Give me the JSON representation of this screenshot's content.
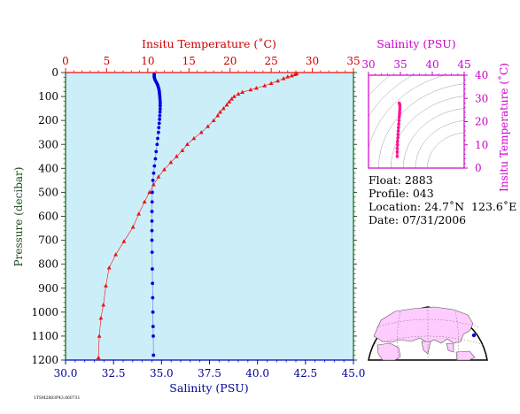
{
  "chart_data": [
    {
      "type": "scatter",
      "name": "profile",
      "top_axis_label": "Insitu Temperature (˚C)",
      "bottom_axis_label": "Salinity (PSU)",
      "ylabel": "Pressure (decibar)",
      "temperature_range": [
        0,
        35
      ],
      "salinity_range": [
        30,
        45
      ],
      "pressure_range": [
        1200,
        0
      ],
      "temperature_ticks": [
        "0",
        "5",
        "10",
        "15",
        "20",
        "25",
        "30",
        "35"
      ],
      "salinity_ticks": [
        "30.0",
        "32.5",
        "35.0",
        "37.5",
        "40.0",
        "42.5",
        "45.0"
      ],
      "pressure_ticks": [
        "0",
        "100",
        "200",
        "300",
        "400",
        "500",
        "600",
        "700",
        "800",
        "900",
        "1000",
        "1100",
        "1200"
      ],
      "background_color": "#cceef8",
      "temperature_color": "#ee1111",
      "salinity_color": "#0000dd",
      "series": [
        {
          "quantity": "temperature",
          "marker": "triangle",
          "points": [
            [
              28.1,
              5
            ],
            [
              27.9,
              8
            ],
            [
              27.5,
              13
            ],
            [
              27.0,
              18
            ],
            [
              26.5,
              25
            ],
            [
              25.8,
              35
            ],
            [
              25.0,
              45
            ],
            [
              24.2,
              55
            ],
            [
              23.2,
              65
            ],
            [
              22.5,
              72
            ],
            [
              21.5,
              82
            ],
            [
              21.0,
              90
            ],
            [
              20.5,
              100
            ],
            [
              20.2,
              110
            ],
            [
              19.9,
              122
            ],
            [
              19.6,
              135
            ],
            [
              19.2,
              150
            ],
            [
              18.8,
              165
            ],
            [
              18.5,
              180
            ],
            [
              18.0,
              200
            ],
            [
              17.3,
              225
            ],
            [
              16.5,
              250
            ],
            [
              15.6,
              275
            ],
            [
              14.8,
              300
            ],
            [
              14.2,
              325
            ],
            [
              13.5,
              350
            ],
            [
              12.8,
              375
            ],
            [
              12.0,
              405
            ],
            [
              11.3,
              435
            ],
            [
              10.7,
              468
            ],
            [
              10.2,
              500
            ],
            [
              9.6,
              540
            ],
            [
              8.9,
              590
            ],
            [
              8.2,
              645
            ],
            [
              7.1,
              705
            ],
            [
              6.1,
              760
            ],
            [
              5.3,
              815
            ],
            [
              4.9,
              890
            ],
            [
              4.6,
              970
            ],
            [
              4.3,
              1025
            ],
            [
              4.1,
              1100
            ],
            [
              4.0,
              1190
            ]
          ]
        },
        {
          "quantity": "salinity",
          "marker": "circle",
          "points": [
            [
              34.62,
              8
            ],
            [
              34.62,
              15
            ],
            [
              34.63,
              22
            ],
            [
              34.66,
              30
            ],
            [
              34.71,
              38
            ],
            [
              34.76,
              45
            ],
            [
              34.8,
              52
            ],
            [
              34.83,
              60
            ],
            [
              34.86,
              68
            ],
            [
              34.88,
              76
            ],
            [
              34.89,
              84
            ],
            [
              34.9,
              92
            ],
            [
              34.91,
              100
            ],
            [
              34.92,
              110
            ],
            [
              34.93,
              120
            ],
            [
              34.93,
              130
            ],
            [
              34.93,
              140
            ],
            [
              34.93,
              152
            ],
            [
              34.92,
              165
            ],
            [
              34.91,
              180
            ],
            [
              34.9,
              195
            ],
            [
              34.88,
              212
            ],
            [
              34.86,
              230
            ],
            [
              34.84,
              250
            ],
            [
              34.8,
              275
            ],
            [
              34.77,
              300
            ],
            [
              34.72,
              330
            ],
            [
              34.68,
              360
            ],
            [
              34.63,
              390
            ],
            [
              34.59,
              420
            ],
            [
              34.55,
              450
            ],
            [
              34.52,
              500
            ],
            [
              34.51,
              540
            ],
            [
              34.5,
              580
            ],
            [
              34.5,
              620
            ],
            [
              34.5,
              660
            ],
            [
              34.5,
              700
            ],
            [
              34.51,
              750
            ],
            [
              34.52,
              820
            ],
            [
              34.53,
              880
            ],
            [
              34.54,
              940
            ],
            [
              34.55,
              1000
            ],
            [
              34.56,
              1060
            ],
            [
              34.57,
              1100
            ],
            [
              34.58,
              1180
            ]
          ]
        }
      ]
    },
    {
      "type": "scatter",
      "name": "ts-diagram",
      "top_axis_label": "Salinity (PSU)",
      "right_axis_label": "Insitu Temperature (˚C)",
      "salinity_range": [
        30,
        45
      ],
      "temperature_range": [
        0,
        40
      ],
      "salinity_ticks": [
        "30",
        "35",
        "40",
        "45"
      ],
      "temperature_ticks": [
        "0",
        "10",
        "20",
        "30",
        "40"
      ],
      "color": "#ff1493",
      "axis_color": "#cc00cc",
      "points": [
        [
          34.5,
          5
        ],
        [
          34.5,
          7
        ],
        [
          34.5,
          8.5
        ],
        [
          34.55,
          10
        ],
        [
          34.55,
          11.5
        ],
        [
          34.6,
          13
        ],
        [
          34.62,
          14.5
        ],
        [
          34.66,
          16
        ],
        [
          34.7,
          17.5
        ],
        [
          34.74,
          19
        ],
        [
          34.78,
          20.5
        ],
        [
          34.82,
          22
        ],
        [
          34.86,
          23
        ],
        [
          34.88,
          24
        ],
        [
          34.9,
          25
        ],
        [
          34.92,
          26
        ],
        [
          34.92,
          27
        ],
        [
          34.88,
          27.5
        ],
        [
          34.82,
          28
        ]
      ]
    }
  ],
  "float_info": {
    "float_label": "Float:",
    "float_value": "2883",
    "profile_label": "Profile:",
    "profile_value": "043",
    "location_label": "Location:",
    "location_value": "24.7˚N  123.6˚E",
    "date_label": "Date:",
    "date_value": "07/31/2006"
  },
  "location_map": {
    "ocean_color": "#ffffff",
    "land_color": "#ffccff",
    "marker_color": "#0000dd"
  },
  "footer_stamp": "1TSM2883P43.060731"
}
